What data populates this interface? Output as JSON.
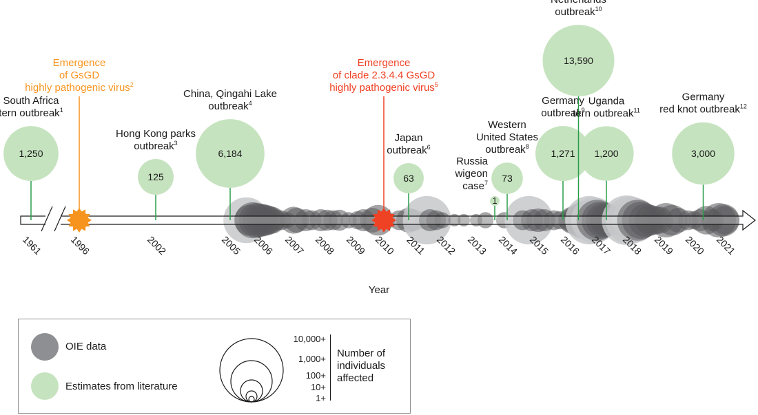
{
  "axis": {
    "xlabel": "Year",
    "years": [
      "1961",
      "1996",
      "2002",
      "2005",
      "2006",
      "2007",
      "2008",
      "2009",
      "2010",
      "2011",
      "2012",
      "2013",
      "2014",
      "2015",
      "2016",
      "2017",
      "2018",
      "2019",
      "2020",
      "2021"
    ]
  },
  "chart_data": {
    "type": "scatter",
    "xlabel": "Year",
    "x_axis_break": "between 1961 and 1996",
    "emergence_events": [
      {
        "year": 1996,
        "lines": [
          "Emergence",
          "of GsGD",
          "highly pathogenic virus"
        ],
        "ref": "2",
        "color": "#f7941d"
      },
      {
        "year": 2010,
        "lines": [
          "Emergence",
          "of clade 2.3.4.4 GsGD",
          "highly pathogenic virus"
        ],
        "ref": "5",
        "color": "#ef4123"
      }
    ],
    "literature_estimates": [
      {
        "year": 1961,
        "value": 1250,
        "display": "1,250",
        "lines": [
          "South Africa",
          "tern outbreak"
        ],
        "ref": "1"
      },
      {
        "year": 2002,
        "value": 125,
        "display": "125",
        "lines": [
          "Hong Kong parks",
          "outbreak"
        ],
        "ref": "3"
      },
      {
        "year": 2005,
        "value": 6184,
        "display": "6,184",
        "lines": [
          "China, Qingahi Lake",
          "outbreak"
        ],
        "ref": "4"
      },
      {
        "year": 2010.8,
        "value": 63,
        "display": "63",
        "lines": [
          "Japan",
          "outbreak"
        ],
        "ref": "6"
      },
      {
        "year": 2013.6,
        "value": 1,
        "display": "1",
        "lines": [
          "Russia",
          "wigeon",
          "case"
        ],
        "ref": "7"
      },
      {
        "year": 2014,
        "value": 73,
        "display": "73",
        "lines": [
          "Western",
          "United States",
          "outbreak"
        ],
        "ref": "8"
      },
      {
        "year": 2015.8,
        "value": 1271,
        "display": "1,271",
        "lines": [
          "Germany",
          "outbreak"
        ],
        "ref": "9"
      },
      {
        "year": 2016.3,
        "value": 13590,
        "display": "13,590",
        "lines": [
          "Netherlands",
          "outbreak"
        ],
        "ref": "10"
      },
      {
        "year": 2017.2,
        "value": 1200,
        "display": "1,200",
        "lines": [
          "Uganda",
          "tern outbreak"
        ],
        "ref": "11"
      },
      {
        "year": 2020.3,
        "value": 3000,
        "display": "3,000",
        "lines": [
          "Germany",
          "red knot outbreak"
        ],
        "ref": "12"
      }
    ],
    "oie_reports": [
      {
        "year": 2005.5,
        "value": 5000
      },
      {
        "year": 2005.7,
        "value": 800
      },
      {
        "year": 2005.8,
        "value": 600
      },
      {
        "year": 2005.9,
        "value": 500
      },
      {
        "year": 2006.0,
        "value": 400
      },
      {
        "year": 2006.1,
        "value": 300
      },
      {
        "year": 2006.2,
        "value": 200
      },
      {
        "year": 2006.3,
        "value": 150
      },
      {
        "year": 2005.6,
        "value": 300
      },
      {
        "year": 2006.4,
        "value": 60
      },
      {
        "year": 2006.6,
        "value": 40
      },
      {
        "year": 2006.8,
        "value": 20
      },
      {
        "year": 2007.0,
        "value": 150
      },
      {
        "year": 2007.1,
        "value": 100
      },
      {
        "year": 2007.4,
        "value": 60
      },
      {
        "year": 2007.6,
        "value": 40
      },
      {
        "year": 2007.9,
        "value": 60
      },
      {
        "year": 2008.1,
        "value": 50
      },
      {
        "year": 2008.3,
        "value": 40
      },
      {
        "year": 2008.5,
        "value": 50
      },
      {
        "year": 2008.8,
        "value": 20
      },
      {
        "year": 2009.1,
        "value": 30
      },
      {
        "year": 2009.3,
        "value": 60
      },
      {
        "year": 2009.6,
        "value": 100
      },
      {
        "year": 2009.8,
        "value": 300
      },
      {
        "year": 2010.1,
        "value": 20
      },
      {
        "year": 2010.5,
        "value": 40
      },
      {
        "year": 2010.8,
        "value": 100
      },
      {
        "year": 2010.95,
        "value": 60
      },
      {
        "year": 2011.3,
        "value": 30
      },
      {
        "year": 2011.4,
        "value": 8000
      },
      {
        "year": 2011.5,
        "value": 60
      },
      {
        "year": 2011.7,
        "value": 40
      },
      {
        "year": 2011.9,
        "value": 20
      },
      {
        "year": 2012.3,
        "value": 10
      },
      {
        "year": 2012.6,
        "value": 10
      },
      {
        "year": 2013.0,
        "value": 10
      },
      {
        "year": 2013.3,
        "value": 20
      },
      {
        "year": 2013.9,
        "value": 20
      },
      {
        "year": 2014.7,
        "value": 8000
      },
      {
        "year": 2014.5,
        "value": 40
      },
      {
        "year": 2014.8,
        "value": 60
      },
      {
        "year": 2015.0,
        "value": 80
      },
      {
        "year": 2015.2,
        "value": 60
      },
      {
        "year": 2015.5,
        "value": 40
      },
      {
        "year": 2015.7,
        "value": 30
      },
      {
        "year": 2016.0,
        "value": 60
      },
      {
        "year": 2016.1,
        "value": 150
      },
      {
        "year": 2016.3,
        "value": 400
      },
      {
        "year": 2016.5,
        "value": 1200
      },
      {
        "year": 2016.65,
        "value": 8000
      },
      {
        "year": 2016.8,
        "value": 5000
      },
      {
        "year": 2016.9,
        "value": 2000
      },
      {
        "year": 2017.0,
        "value": 1000
      },
      {
        "year": 2017.1,
        "value": 600
      },
      {
        "year": 2017.2,
        "value": 400
      },
      {
        "year": 2017.35,
        "value": 300
      },
      {
        "year": 2017.5,
        "value": 200
      },
      {
        "year": 2017.6,
        "value": 150
      },
      {
        "year": 2017.7,
        "value": 150
      },
      {
        "year": 2017.85,
        "value": 10000
      },
      {
        "year": 2017.95,
        "value": 7000
      },
      {
        "year": 2018.1,
        "value": 4000
      },
      {
        "year": 2018.2,
        "value": 2000
      },
      {
        "year": 2018.3,
        "value": 1000
      },
      {
        "year": 2018.45,
        "value": 500
      },
      {
        "year": 2018.6,
        "value": 300
      },
      {
        "year": 2018.75,
        "value": 200
      },
      {
        "year": 2018.9,
        "value": 150
      },
      {
        "year": 2019.1,
        "value": 600
      },
      {
        "year": 2019.3,
        "value": 300
      },
      {
        "year": 2019.5,
        "value": 100
      },
      {
        "year": 2019.8,
        "value": 40
      },
      {
        "year": 2020.0,
        "value": 30
      },
      {
        "year": 2020.2,
        "value": 60
      },
      {
        "year": 2020.4,
        "value": 200
      },
      {
        "year": 2020.6,
        "value": 60
      },
      {
        "year": 2020.8,
        "value": 600
      },
      {
        "year": 2020.95,
        "value": 400
      },
      {
        "year": 2021.1,
        "value": 200
      }
    ]
  },
  "legend": {
    "oie_label": "OIE data",
    "literature_label": "Estimates from literature",
    "scale_title_lines": [
      "Number of",
      "individuals",
      "affected"
    ],
    "scale_levels": [
      "10,000+",
      "1,000+",
      "100+",
      "10+",
      "1+"
    ]
  },
  "colors": {
    "oie_fill": "#5a5a5c",
    "oie_light": "#c7c8ca",
    "literature_fill": "#c6e3bf",
    "stem": "#2a9d4a",
    "text": "#1a1a1a"
  }
}
